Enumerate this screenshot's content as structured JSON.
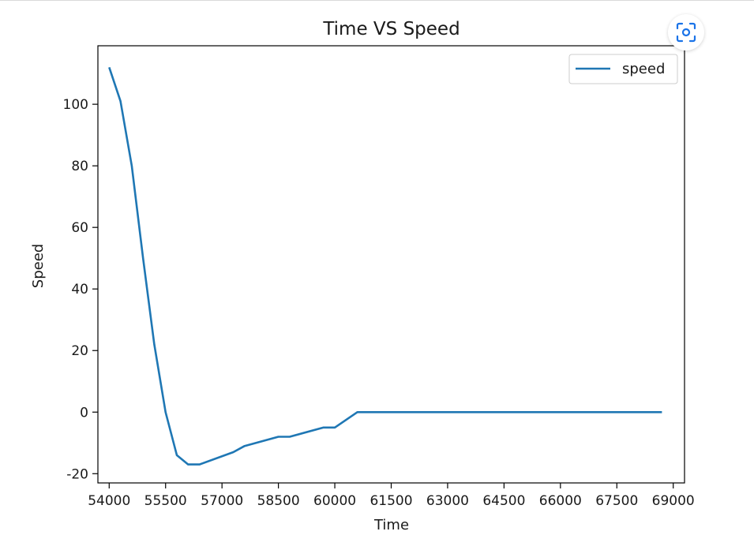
{
  "chart_data": {
    "type": "line",
    "title": "Time VS Speed",
    "xlabel": "Time",
    "ylabel": "Speed",
    "xlim": [
      53700,
      69300
    ],
    "ylim": [
      -23,
      119
    ],
    "xticks": [
      54000,
      55500,
      57000,
      58500,
      60000,
      61500,
      63000,
      64500,
      66000,
      67500,
      69000
    ],
    "yticks": [
      -20,
      0,
      20,
      40,
      60,
      80,
      100
    ],
    "legend_position": "upper right",
    "grid": false,
    "series": [
      {
        "name": "speed",
        "color": "#1f77b4",
        "x": [
          54000,
          54300,
          54600,
          54900,
          55200,
          55500,
          55800,
          56100,
          56400,
          57300,
          57600,
          58500,
          58800,
          59700,
          60000,
          60600,
          61000,
          62000,
          63000,
          64000,
          65000,
          66000,
          67000,
          68000,
          68700
        ],
        "y": [
          112,
          101,
          80,
          50,
          22,
          0,
          -14,
          -17,
          -17,
          -13,
          -11,
          -8,
          -8,
          -5,
          -5,
          0,
          0,
          0,
          0,
          0,
          0,
          0,
          0,
          0,
          0
        ]
      }
    ]
  },
  "ui": {
    "scan_icon": "lens-scan-icon"
  }
}
